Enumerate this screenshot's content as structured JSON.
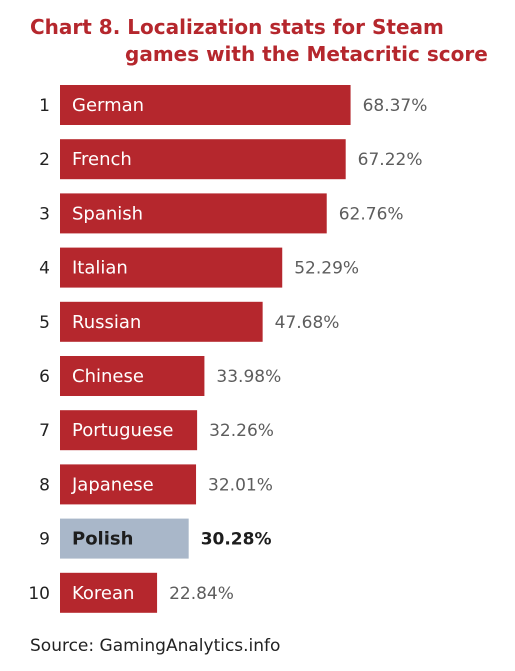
{
  "chart_data": {
    "type": "bar",
    "orientation": "horizontal",
    "title_line1": "Chart 8. Localization stats for Steam",
    "title_line2": "games with the Metacritic score",
    "ranks": [
      "1",
      "2",
      "3",
      "4",
      "5",
      "6",
      "7",
      "8",
      "9",
      "10"
    ],
    "categories": [
      "German",
      "French",
      "Spanish",
      "Italian",
      "Russian",
      "Chinese",
      "Portuguese",
      "Japanese",
      "Polish",
      "Korean"
    ],
    "values": [
      68.37,
      67.22,
      62.76,
      52.29,
      47.68,
      33.98,
      32.26,
      32.01,
      30.28,
      22.84
    ],
    "value_labels": [
      "68.37%",
      "67.22%",
      "62.76%",
      "52.29%",
      "47.68%",
      "33.98%",
      "32.26%",
      "32.01%",
      "30.28%",
      "22.84%"
    ],
    "highlight_category": "Polish",
    "grid": false,
    "source": "Source: GamingAnalytics.info"
  },
  "colors": {
    "title": "#b5272d",
    "bar": "#b5272d",
    "highlight_bar": "#a9b7c9"
  }
}
